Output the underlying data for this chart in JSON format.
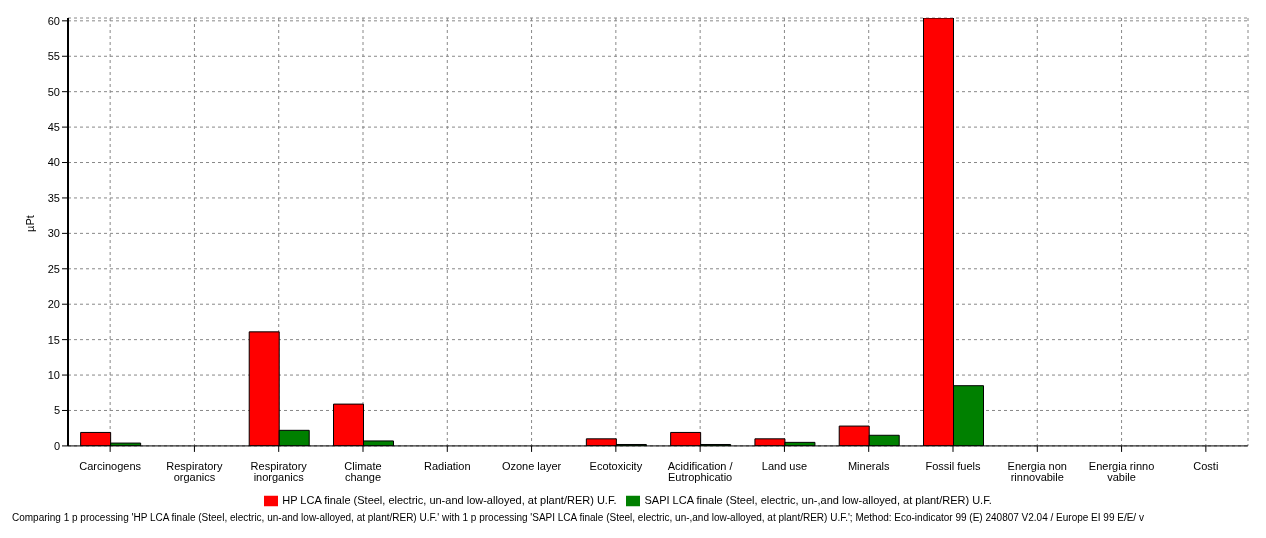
{
  "chart_data": {
    "type": "bar",
    "ylabel": "µPt",
    "categories": [
      "Carcinogens",
      "Respiratory organics",
      "Respiratory inorganics",
      "Climate change",
      "Radiation",
      "Ozone layer",
      "Ecotoxicity",
      "Acidification / Eutrophicatio",
      "Land use",
      "Minerals",
      "Fossil fuels",
      "Energia non rinnovabile",
      "Energia rinno vabile",
      "Costi"
    ],
    "series": [
      {
        "name": "HP LCA finale (Steel, electric, un-and low-alloyed, at plant/RER) U.F.",
        "color": "#ff0000",
        "values": [
          1.9,
          0,
          16.1,
          5.9,
          0,
          0,
          1.0,
          1.9,
          1.0,
          2.8,
          60.4,
          0,
          0,
          0
        ]
      },
      {
        "name": "SAPI LCA finale (Steel, electric, un-,and low-alloyed, at plant/RER) U.F.",
        "color": "#008000",
        "values": [
          0.4,
          0,
          2.2,
          0.7,
          0,
          0,
          0.2,
          0.2,
          0.5,
          1.5,
          8.5,
          0,
          0,
          0
        ]
      }
    ],
    "ylim": [
      0,
      60.4
    ],
    "yticks": [
      0,
      5,
      10,
      15,
      20,
      25,
      30,
      35,
      40,
      45,
      50,
      55,
      60
    ],
    "grid": true,
    "legend": "bottom",
    "annotations": [
      "Comparing 1 p processing 'HP LCA finale (Steel, electric, un-and low-alloyed, at plant/RER) U.F.' with 1 p processing 'SAPI LCA finale (Steel, electric, un-,and low-alloyed, at plant/RER) U.F.';  Method: Eco-indicator 99 (E) 240807 V2.04 /  Europe EI 99 E/E/ v"
    ]
  }
}
